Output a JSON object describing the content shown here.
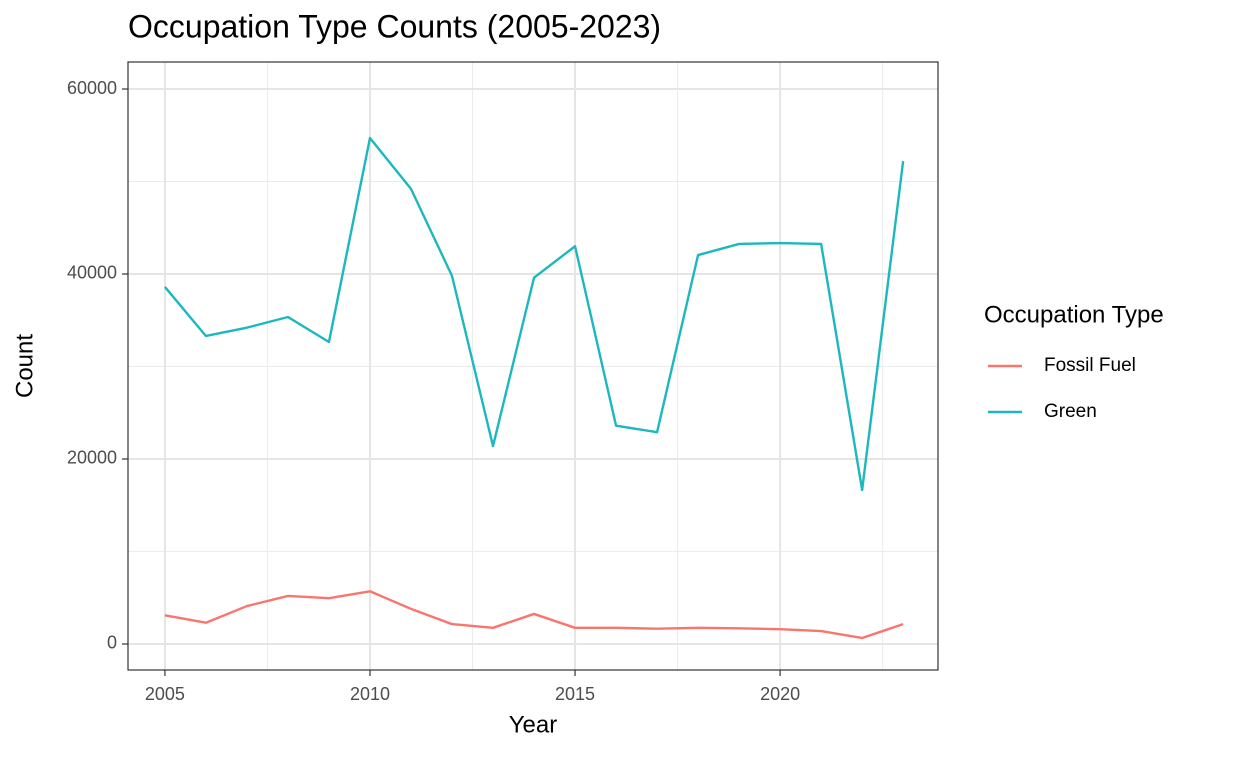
{
  "chart_data": {
    "type": "line",
    "title": "Occupation Type Counts (2005-2023)",
    "x_label": "Year",
    "y_label": "Count",
    "legend_title": "Occupation Type",
    "legend_position": "right",
    "grid": true,
    "x": [
      2005,
      2006,
      2007,
      2008,
      2009,
      2010,
      2011,
      2012,
      2013,
      2014,
      2015,
      2016,
      2017,
      2018,
      2019,
      2020,
      2021,
      2022,
      2023
    ],
    "series": [
      {
        "name": "Fossil Fuel",
        "color": "#F8766D",
        "values": [
          3100,
          2300,
          4100,
          5200,
          4950,
          5700,
          3800,
          2150,
          1750,
          3250,
          1750,
          1750,
          1650,
          1750,
          1700,
          1600,
          1400,
          650,
          2150
        ]
      },
      {
        "name": "Green",
        "color": "#1CB8BE",
        "values": [
          38600,
          33300,
          34200,
          35350,
          32650,
          54700,
          49200,
          39800,
          21400,
          39600,
          43000,
          23600,
          22900,
          42050,
          43250,
          43350,
          43250,
          16650,
          52200
        ]
      }
    ],
    "xlim": [
      2004.1,
      2023.85
    ],
    "xticks": [
      2005,
      2010,
      2015,
      2020
    ],
    "ylim": [
      -2811,
      62919
    ],
    "yticks": [
      0,
      20000,
      40000,
      60000
    ]
  }
}
